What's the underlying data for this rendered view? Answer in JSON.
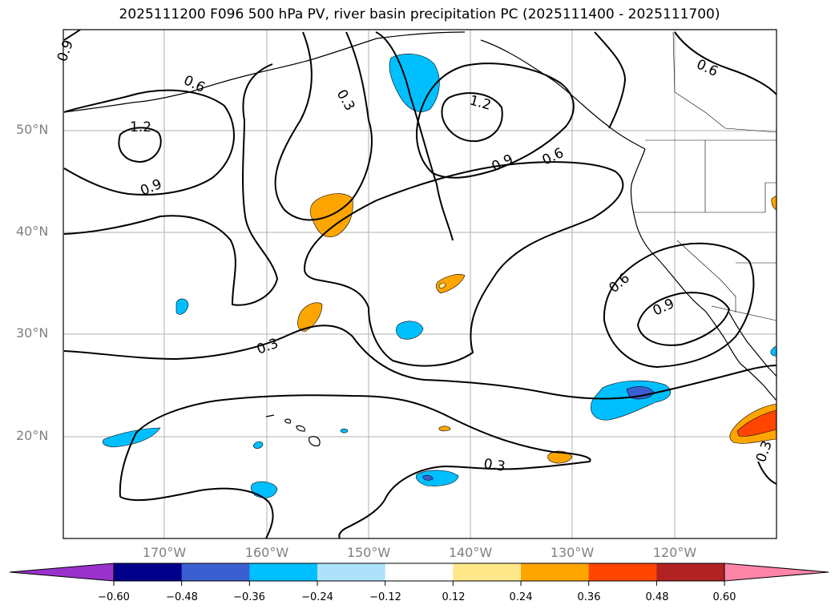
{
  "title": "2025111200 F096 500 hPa PV, river basin precipitation PC (2025111400 - 2025111700)",
  "lat_labels": [
    "50°N",
    "40°N",
    "30°N",
    "20°N"
  ],
  "lon_labels": [
    "170°W",
    "160°W",
    "150°W",
    "140°W",
    "130°W",
    "120°W"
  ],
  "contour_labels": [
    "0.9",
    "0.6",
    "1.2",
    "0.9",
    "0.3",
    "1.2",
    "0.9",
    "0.6",
    "0.6",
    "0.9",
    "0.3",
    "0.3",
    "0.3",
    "0.6"
  ],
  "colorbar": {
    "tick_labels": [
      "−0.60",
      "−0.48",
      "−0.36",
      "−0.24",
      "−0.12",
      "0.12",
      "0.24",
      "0.36",
      "0.48",
      "0.60"
    ],
    "colors": [
      "#9932cc",
      "#00008b",
      "#3b5fd0",
      "#00bfff",
      "#aee2fa",
      "#ffffff",
      "#ffe88a",
      "#ffa500",
      "#ff4500",
      "#b22222",
      "#ff85a8"
    ]
  },
  "fill_colors": {
    "neg_outer": "#00bfff",
    "neg_inner": "#3b5fd0",
    "pos_outer": "#ffa500",
    "pos_inner": "#ff4500",
    "pos_light": "#ffe88a"
  }
}
